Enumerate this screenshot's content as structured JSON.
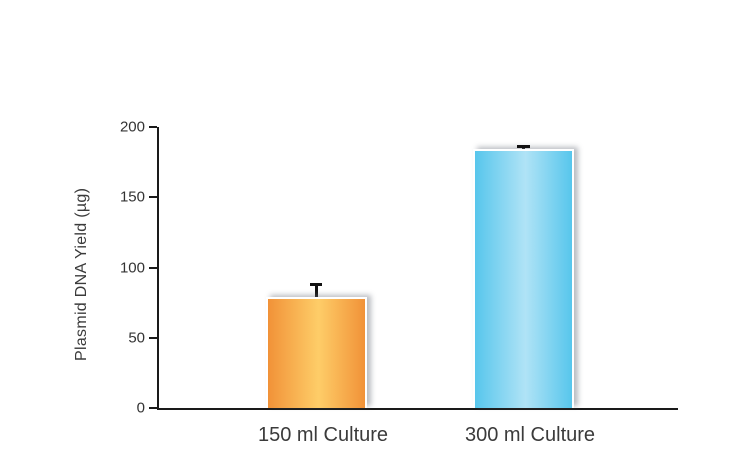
{
  "chart_data": {
    "type": "bar",
    "title": "",
    "xlabel": "",
    "ylabel": "Plasmid DNA Yield (µg)",
    "categories": [
      "150 ml Culture",
      "300 ml Culture"
    ],
    "values": [
      79,
      184
    ],
    "errors_plus": [
      10,
      3
    ],
    "yticks": [
      0,
      50,
      100,
      150,
      200
    ],
    "ylim": [
      0,
      200
    ],
    "grid": false,
    "legend": "none",
    "bar_colors": [
      {
        "name": "orange",
        "edge": "#F19238",
        "mid": "#FECD68"
      },
      {
        "name": "blue",
        "edge": "#57C6EC",
        "mid": "#B0E3F6"
      }
    ],
    "axis_color": "#1A1A1A",
    "text_color": "#3B3B3B"
  }
}
